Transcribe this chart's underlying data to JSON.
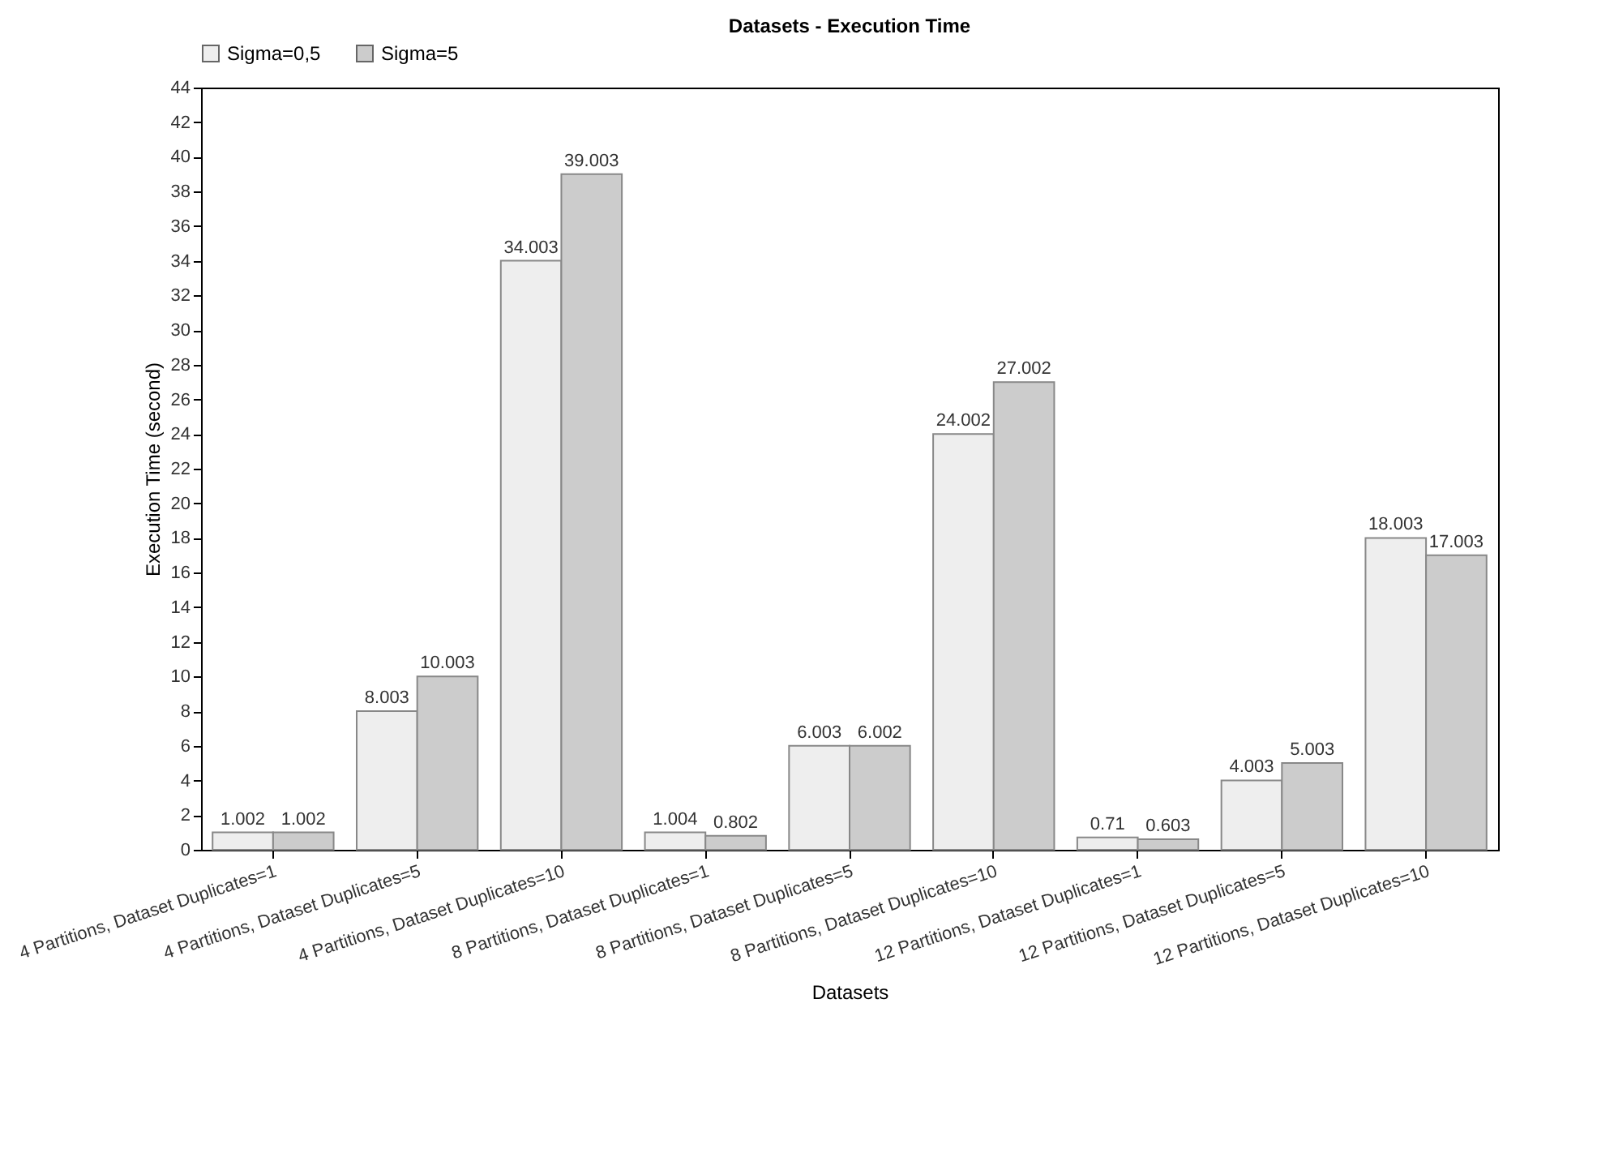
{
  "chart_data": {
    "type": "bar",
    "title": "Datasets - Execution Time",
    "xlabel": "Datasets",
    "ylabel": "Execution Time (second)",
    "categories": [
      "4 Partitions, Dataset Duplicates=1",
      "4 Partitions, Dataset Duplicates=5",
      "4 Partitions, Dataset Duplicates=10",
      "8 Partitions, Dataset Duplicates=1",
      "8 Partitions, Dataset Duplicates=5",
      "8 Partitions, Dataset Duplicates=10",
      "12 Partitions, Dataset Duplicates=1",
      "12 Partitions, Dataset Duplicates=5",
      "12 Partitions, Dataset Duplicates=10"
    ],
    "series": [
      {
        "name": "Sigma=0,5",
        "color": "#eeeeee",
        "values": [
          1.002,
          8.003,
          34.003,
          1.004,
          6.003,
          24.002,
          0.71,
          4.003,
          18.003
        ]
      },
      {
        "name": "Sigma=5",
        "color": "#cccccc",
        "values": [
          1.002,
          10.003,
          39.003,
          0.802,
          6.002,
          27.002,
          0.603,
          5.003,
          17.003
        ]
      }
    ],
    "ylim": [
      0,
      44
    ],
    "yticks": [
      0,
      2,
      4,
      6,
      8,
      10,
      12,
      14,
      16,
      18,
      20,
      22,
      24,
      26,
      28,
      30,
      32,
      34,
      36,
      38,
      40,
      42,
      44
    ],
    "data_labels": true,
    "legend": "top left",
    "grid": false
  }
}
